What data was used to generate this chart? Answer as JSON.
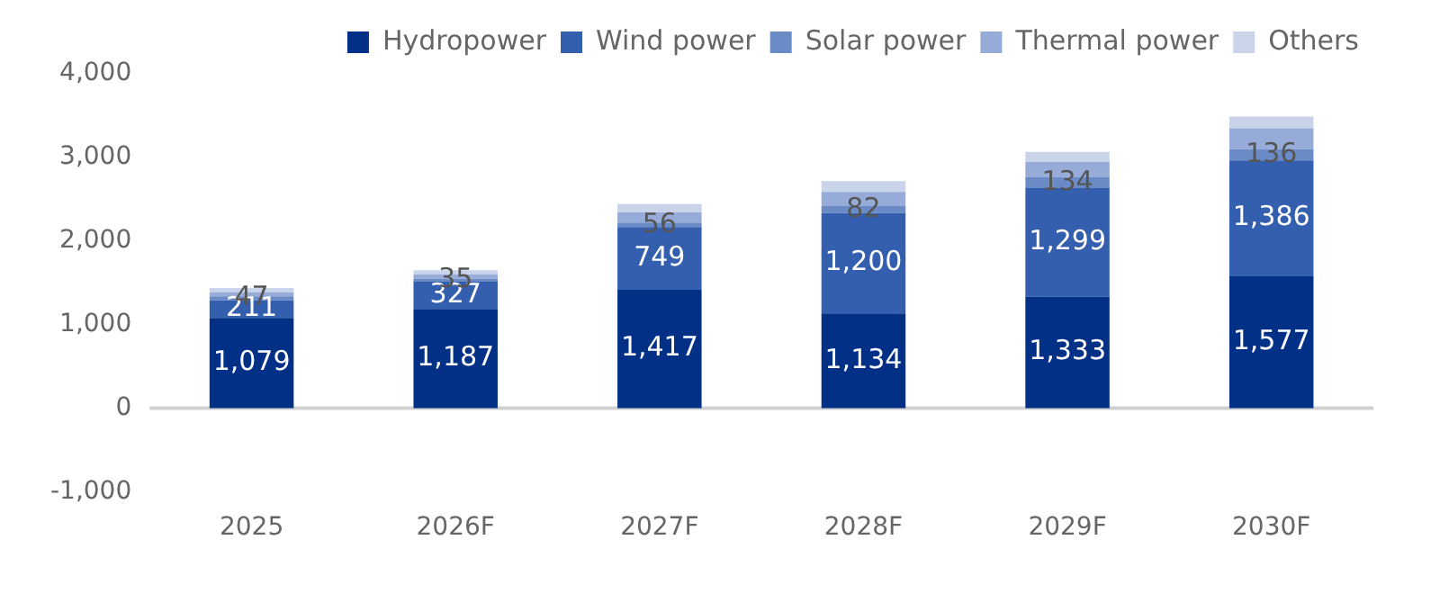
{
  "chart_data": {
    "type": "bar",
    "stacked": true,
    "categories": [
      "2025",
      "2026F",
      "2027F",
      "2028F",
      "2029F",
      "2030F"
    ],
    "series": [
      {
        "name": "Hydropower",
        "color": "#023087",
        "values": [
          1079,
          1187,
          1417,
          1134,
          1333,
          1577
        ],
        "value_labels": [
          "1,079",
          "1,187",
          "1,417",
          "1,134",
          "1,333",
          "1,577"
        ]
      },
      {
        "name": "Wind power",
        "color": "#345eae",
        "values": [
          211,
          327,
          749,
          1200,
          1299,
          1386
        ],
        "value_labels": [
          "211",
          "327",
          "749",
          "1,200",
          "1,299",
          "1,386"
        ]
      },
      {
        "name": "Solar power",
        "color": "#6a8bc6",
        "values": [
          47,
          35,
          56,
          82,
          134,
          136
        ],
        "value_labels": [
          "47",
          "35",
          "56",
          "82",
          "134",
          "136"
        ]
      },
      {
        "name": "Thermal power",
        "color": "#96abd8",
        "values": [
          50,
          50,
          120,
          170,
          180,
          250
        ]
      },
      {
        "name": "Others",
        "color": "#c9d3ea",
        "values": [
          50,
          50,
          100,
          130,
          120,
          140
        ]
      }
    ],
    "ylim": [
      -1000,
      4000
    ],
    "yticks": [
      {
        "value": -1000,
        "label": "-1,000"
      },
      0,
      {
        "value": 1000,
        "label": "1,000"
      },
      {
        "value": 2000,
        "label": "2,000"
      },
      {
        "value": 3000,
        "label": "3,000"
      },
      {
        "value": 4000,
        "label": "4,000"
      }
    ],
    "ref_lines": [
      {
        "axis": "y",
        "value": 0,
        "color": "#d0d0d0"
      }
    ],
    "grid": false,
    "legend": "top"
  }
}
